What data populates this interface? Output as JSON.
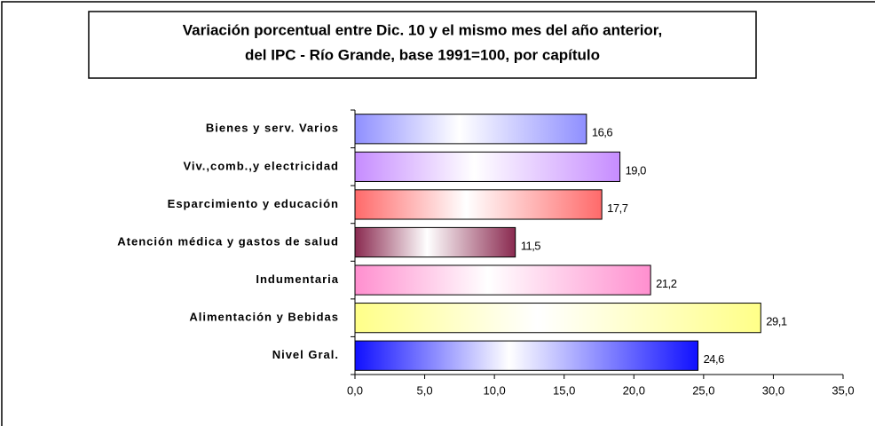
{
  "chart_data": {
    "type": "barh",
    "title": [
      "Variación porcentual entre Dic. 10 y el mismo  mes del año anterior,",
      "del IPC - Río Grande, base 1991=100, por capítulo"
    ],
    "categories": [
      "Bienes y serv. Varios",
      "Viv.,comb.,y electricidad",
      "Esparcimiento y educación",
      "Atención médica y gastos de salud",
      "Indumentaria",
      "Alimentación y Bebidas",
      "Nivel Gral."
    ],
    "values": [
      16.6,
      19.0,
      17.7,
      11.5,
      21.2,
      29.1,
      24.6
    ],
    "value_labels": [
      "16,6",
      "19,0",
      "17,7",
      "11,5",
      "21,2",
      "29,1",
      "24,6"
    ],
    "colors": [
      "#8f8fff",
      "#c68cff",
      "#ff6a6a",
      "#8a2a50",
      "#ff8fcf",
      "#ffff88",
      "#1010ff"
    ],
    "xlim": [
      0,
      35
    ],
    "xticks": [
      {
        "value": 0,
        "label": "0,0"
      },
      {
        "value": 5,
        "label": "5,0"
      },
      {
        "value": 10,
        "label": "10,0"
      },
      {
        "value": 15,
        "label": "15,0"
      },
      {
        "value": 20,
        "label": "20,0"
      },
      {
        "value": 25,
        "label": "25,0"
      },
      {
        "value": 30,
        "label": "30,0"
      },
      {
        "value": 35,
        "label": "35,0"
      }
    ],
    "grid": false
  }
}
